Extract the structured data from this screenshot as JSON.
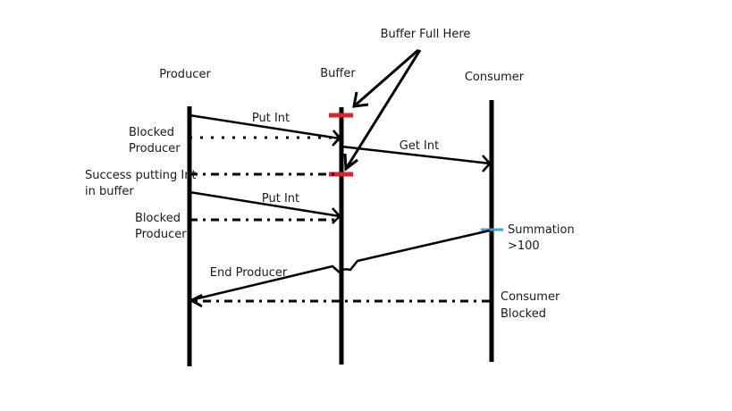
{
  "participants": {
    "producer": "Producer",
    "buffer": "Buffer",
    "consumer": "Consumer"
  },
  "annotation": "Buffer Full Here",
  "messages": {
    "put_int_1": "Put Int",
    "get_int": "Get Int",
    "put_int_2": "Put Int",
    "end_producer": "End Producer"
  },
  "notes": {
    "blocked_producer_1": [
      "Blocked",
      "Producer"
    ],
    "success_putting": [
      "Success putting Int",
      "in buffer"
    ],
    "blocked_producer_2": [
      "Blocked",
      "Producer"
    ],
    "summation": [
      "Summation",
      ">100"
    ],
    "consumer_blocked": [
      "Consumer",
      "Blocked"
    ]
  },
  "colors": {
    "line": "#000000",
    "buffer_full_marker": "#d9262c",
    "summation_marker": "#3aa6d8"
  }
}
